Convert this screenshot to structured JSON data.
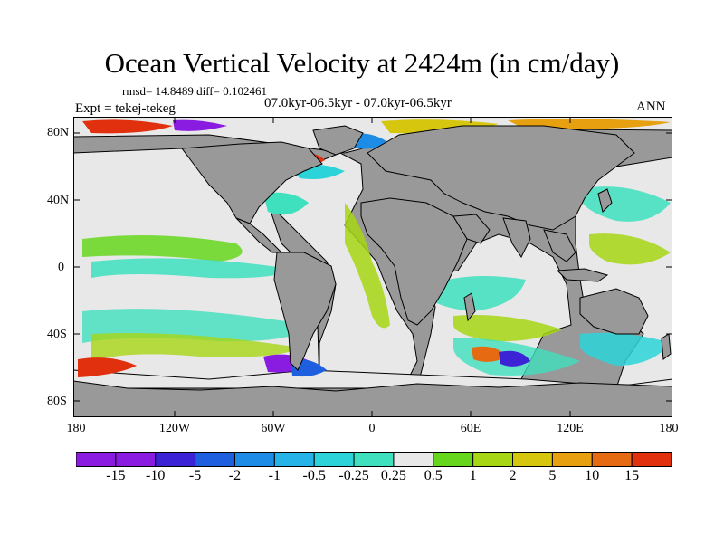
{
  "title": "Ocean Vertical Velocity at 2424m (in cm/day)",
  "stats": "rmsd= 14.8489 diff= 0.102461",
  "period": "07.0kyr-06.5kyr - 07.0kyr-06.5kyr",
  "experiment": "Expt = tekej-tekeg",
  "season": "ANN",
  "map": {
    "lat_labels": [
      "80N",
      "40N",
      "0",
      "40S",
      "80S"
    ],
    "lon_labels": [
      "180",
      "120W",
      "60W",
      "0",
      "60E",
      "120E",
      "180"
    ],
    "colors": {
      "land": "#999999",
      "near_zero": "#e8e8e8"
    }
  },
  "colorbar": {
    "labels": [
      "-15",
      "-10",
      "-5",
      "-2",
      "-1",
      "-0.5",
      "-0.25",
      "0.25",
      "0.5",
      "1",
      "2",
      "5",
      "10",
      "15"
    ],
    "colors": [
      "#8a1be0",
      "#3d23d6",
      "#1e5fe0",
      "#1d8ce6",
      "#25b3e8",
      "#2cd3d8",
      "#3ee0be",
      "#e8e8e8",
      "#66d61c",
      "#a6d614",
      "#d6c60e",
      "#e6a010",
      "#e66a12",
      "#e0300e"
    ]
  }
}
